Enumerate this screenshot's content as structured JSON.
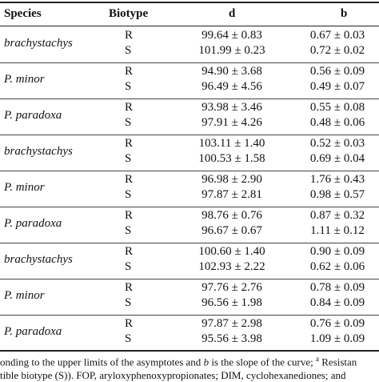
{
  "header": {
    "species": "Species",
    "biotype": "Biotype",
    "d": "d",
    "b": "b"
  },
  "rows": [
    {
      "species": "brachystachys",
      "r_label": "R",
      "s_label": "S",
      "r_d": "99.64 ± 0.83",
      "s_d": "101.99 ± 0.23",
      "r_b": "0.67 ± 0.03",
      "s_b": "0.72 ± 0.02"
    },
    {
      "species": "P. minor",
      "r_label": "R",
      "s_label": "S",
      "r_d": "94.90 ± 3.68",
      "s_d": "96.49 ± 4.56",
      "r_b": "0.56 ± 0.09",
      "s_b": "0.49 ± 0.07"
    },
    {
      "species": "P. paradoxa",
      "r_label": "R",
      "s_label": "S",
      "r_d": "93.98 ± 3.46",
      "s_d": "97.91 ± 4.26",
      "r_b": "0.55 ± 0.08",
      "s_b": "0.48 ± 0.06"
    },
    {
      "species": "brachystachys",
      "r_label": "R",
      "s_label": "S",
      "r_d": "103.11 ± 1.40",
      "s_d": "100.53 ± 1.58",
      "r_b": "0.52 ± 0.03",
      "s_b": "0.69 ± 0.04"
    },
    {
      "species": "P. minor",
      "r_label": "R",
      "s_label": "S",
      "r_d": "96.98 ± 2.90",
      "s_d": "97.87 ± 2.81",
      "r_b": "1.76 ± 0.43",
      "s_b": "0.98 ± 0.57"
    },
    {
      "species": "P. paradoxa",
      "r_label": "R",
      "s_label": "S",
      "r_d": "98.76 ± 0.76",
      "s_d": "96.67 ± 0.67",
      "r_b": "0.87 ± 0.32",
      "s_b": "1.11 ± 0.12"
    },
    {
      "species": "brachystachys",
      "r_label": "R",
      "s_label": "S",
      "r_d": "100.60 ± 1.40",
      "s_d": "102.93 ± 2.22",
      "r_b": "0.90 ± 0.09",
      "s_b": "0.62 ± 0.06"
    },
    {
      "species": "P. minor",
      "r_label": "R",
      "s_label": "S",
      "r_d": "97.76 ± 2.76",
      "s_d": "96.56 ± 1.98",
      "r_b": "0.78 ± 0.09",
      "s_b": "0.84 ± 0.09"
    },
    {
      "species": "P. paradoxa",
      "r_label": "R",
      "s_label": "S",
      "r_d": "97.87 ± 2.98",
      "s_d": "95.56 ± 3.98",
      "r_b": "0.76 ± 0.09",
      "s_b": "1.09 ± 0.09"
    }
  ],
  "footnote": {
    "line1_a": "onding to the upper limits of the asymptotes and ",
    "line1_b_italic": "b",
    "line1_c": " is the slope of the curve; ",
    "line1_sup": "a",
    "line1_d": " Resistan",
    "line2": "tible biotype (S)). FOP, aryloxyphenoxypropionates; DIM, cyclohexanediones; and"
  }
}
